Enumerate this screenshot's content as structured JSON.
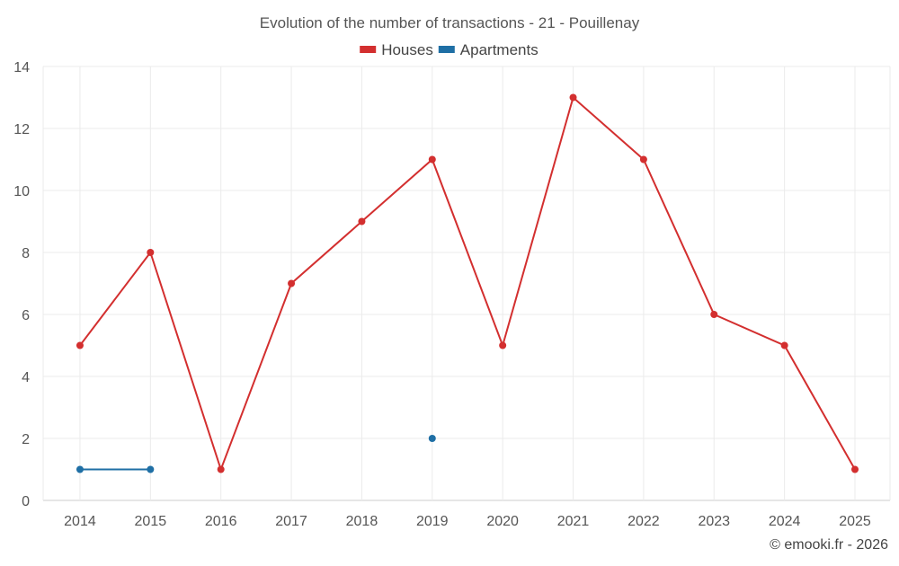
{
  "chart_data": {
    "type": "line",
    "title": "Evolution of the number of transactions - 21 - Pouillenay",
    "xlabel": "",
    "ylabel": "",
    "categories": [
      "2014",
      "2015",
      "2016",
      "2017",
      "2018",
      "2019",
      "2020",
      "2021",
      "2022",
      "2023",
      "2024",
      "2025"
    ],
    "y_ticks": [
      "0",
      "2",
      "4",
      "6",
      "8",
      "10",
      "12",
      "14"
    ],
    "ylim": [
      0,
      14
    ],
    "grid": true,
    "legend_position": "top-center",
    "series": [
      {
        "name": "Houses",
        "color": "#d32f2f",
        "values": [
          5,
          8,
          1,
          7,
          9,
          11,
          5,
          13,
          11,
          6,
          5,
          1
        ]
      },
      {
        "name": "Apartments",
        "color": "#1f6fa5",
        "values": [
          1,
          1,
          null,
          null,
          null,
          2,
          null,
          null,
          null,
          null,
          null,
          null
        ]
      }
    ]
  },
  "credit": "© emooki.fr - 2026"
}
